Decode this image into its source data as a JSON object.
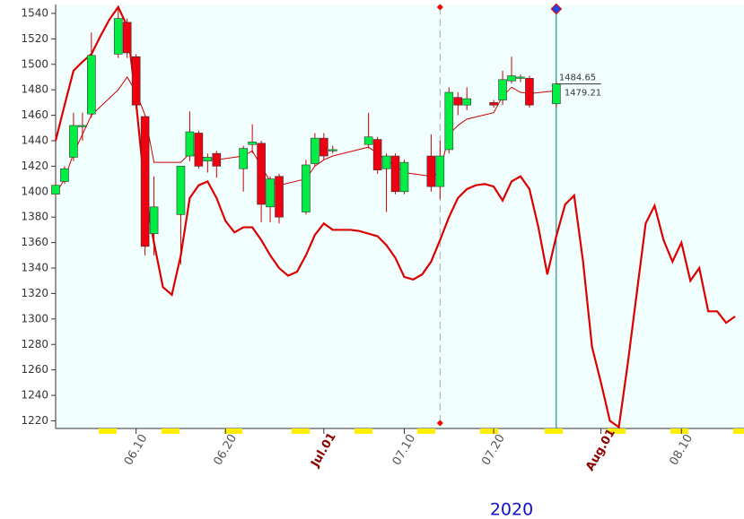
{
  "chart_data": {
    "type": "candlestick",
    "year_label": "2020",
    "xlim": [
      "06.01",
      "08.17"
    ],
    "ylim": [
      1214,
      1547
    ],
    "yticks": [
      1220,
      1240,
      1260,
      1280,
      1300,
      1320,
      1340,
      1360,
      1380,
      1400,
      1420,
      1440,
      1460,
      1480,
      1500,
      1520,
      1540
    ],
    "xticks": [
      "06.10",
      "06.20",
      {
        "value": "07.01",
        "label": "Jul.01"
      },
      "07.10",
      "07.20",
      {
        "value": "08.01",
        "label": "Aug.01"
      },
      "08.10"
    ],
    "divider_x": "07.14",
    "cursor_x": "07.27",
    "candles": {
      "up_color": "#00ee44",
      "down_color": "#ee0011",
      "x": [
        "06.01",
        "06.02",
        "06.03",
        "06.04",
        "06.05",
        "06.08",
        "06.09",
        "06.10",
        "06.11",
        "06.12",
        "06.15",
        "06.16",
        "06.17",
        "06.18",
        "06.19",
        "06.22",
        "06.23",
        "06.24",
        "06.25",
        "06.26",
        "06.29",
        "06.30",
        "07.01",
        "07.02",
        "07.06",
        "07.07",
        "07.08",
        "07.09",
        "07.10",
        "07.13",
        "07.14",
        "07.15",
        "07.16",
        "07.17",
        "07.20",
        "07.21",
        "07.22",
        "07.23",
        "07.24",
        "07.27"
      ],
      "open": [
        1398,
        1408,
        1427,
        1451,
        1461,
        1508,
        1533,
        1506,
        1459,
        1367,
        1382,
        1428,
        1446,
        1424,
        1430,
        1418,
        1437,
        1438,
        1388,
        1412,
        1384,
        1422,
        1442,
        1433,
        1437,
        1441,
        1418,
        1428,
        1400,
        1428,
        1404,
        1433,
        1474,
        1468,
        1470,
        1472,
        1487,
        1489,
        1489,
        1469
      ],
      "high": [
        1408,
        1420,
        1462,
        1462,
        1525,
        1545,
        1536,
        1508,
        1460,
        1412,
        1420,
        1463,
        1448,
        1430,
        1432,
        1436,
        1453,
        1440,
        1412,
        1414,
        1425,
        1446,
        1446,
        1436,
        1462,
        1443,
        1430,
        1430,
        1425,
        1445,
        1440,
        1482,
        1478,
        1482,
        1472,
        1495,
        1506,
        1492,
        1491,
        1486
      ],
      "low": [
        1396,
        1406,
        1424,
        1440,
        1458,
        1505,
        1505,
        1465,
        1350,
        1350,
        1343,
        1424,
        1418,
        1415,
        1411,
        1400,
        1430,
        1376,
        1376,
        1375,
        1382,
        1420,
        1425,
        1430,
        1434,
        1414,
        1384,
        1398,
        1398,
        1400,
        1394,
        1430,
        1460,
        1464,
        1466,
        1468,
        1485,
        1486,
        1466,
        1466
      ],
      "close": [
        1405,
        1418,
        1452,
        1452,
        1507,
        1536,
        1509,
        1468,
        1357,
        1388,
        1420,
        1447,
        1420,
        1427,
        1420,
        1434,
        1439,
        1390,
        1410,
        1380,
        1421,
        1442,
        1428,
        1433,
        1443,
        1417,
        1428,
        1400,
        1423,
        1404,
        1428,
        1478,
        1468,
        1473,
        1468,
        1488,
        1491,
        1490,
        1468,
        1484.65
      ],
      "last_label": "1484.65"
    },
    "series": [
      {
        "color": "#cc0000",
        "x": [
          "06.01",
          "06.02",
          "06.03",
          "06.04",
          "06.05",
          "06.08",
          "06.09",
          "06.10",
          "06.11",
          "06.12",
          "06.15",
          "06.16",
          "06.17",
          "06.18",
          "06.19",
          "06.22",
          "06.23",
          "06.24",
          "06.25",
          "06.26",
          "06.29",
          "06.30",
          "07.01",
          "07.02",
          "07.06",
          "07.07",
          "07.08",
          "07.09",
          "07.10",
          "07.13",
          "07.14",
          "07.15",
          "07.16",
          "07.17",
          "07.20",
          "07.21",
          "07.22",
          "07.23",
          "07.24",
          "07.27"
        ],
        "values": [
          1398,
          1410,
          1430,
          1445,
          1460,
          1480,
          1490,
          1478,
          1460,
          1423,
          1423,
          1430,
          1428,
          1426,
          1425,
          1428,
          1432,
          1420,
          1408,
          1405,
          1410,
          1420,
          1425,
          1428,
          1435,
          1430,
          1425,
          1420,
          1415,
          1412,
          1415,
          1445,
          1452,
          1457,
          1462,
          1475,
          1482,
          1478,
          1477,
          1479.21
        ],
        "last_label": "1479.21"
      },
      {
        "color": "#dd0000",
        "x": [
          "06.01",
          "06.02",
          "06.03",
          "06.04",
          "06.05",
          "06.06",
          "06.07",
          "06.08",
          "06.09",
          "06.10",
          "06.11",
          "06.12",
          "06.13",
          "06.14",
          "06.15",
          "06.16",
          "06.17",
          "06.18",
          "06.19",
          "06.20",
          "06.21",
          "06.22",
          "06.23",
          "06.24",
          "06.25",
          "06.26",
          "06.27",
          "06.28",
          "06.29",
          "06.30",
          "07.01",
          "07.02",
          "07.03",
          "07.04",
          "07.05",
          "07.06",
          "07.07",
          "07.08",
          "07.09",
          "07.10",
          "07.11",
          "07.12",
          "07.13",
          "07.14",
          "07.15",
          "07.16",
          "07.17",
          "07.18",
          "07.19",
          "07.20",
          "07.21",
          "07.22",
          "07.23",
          "07.24",
          "07.25",
          "07.26",
          "07.27",
          "07.28",
          "07.29",
          "07.30",
          "07.31",
          "08.01",
          "08.02",
          "08.03",
          "08.04",
          "08.05",
          "08.06",
          "08.07",
          "08.08",
          "08.09",
          "08.10",
          "08.11",
          "08.12",
          "08.13",
          "08.14",
          "08.15",
          "08.16"
        ],
        "values": [
          1440,
          1468,
          1495,
          1502,
          1508,
          1522,
          1535,
          1545,
          1530,
          1470,
          1400,
          1360,
          1325,
          1319,
          1350,
          1395,
          1405,
          1408,
          1395,
          1377,
          1368,
          1372,
          1372,
          1362,
          1350,
          1340,
          1334,
          1337,
          1350,
          1366,
          1375,
          1370,
          1370,
          1370,
          1369,
          1367,
          1365,
          1358,
          1348,
          1333,
          1331,
          1335,
          1345,
          1362,
          1380,
          1395,
          1402,
          1405,
          1406,
          1404,
          1393,
          1408,
          1412,
          1402,
          1372,
          1335,
          1365,
          1390,
          1397,
          1345,
          1278,
          1250,
          1220,
          1215,
          1265,
          1320,
          1375,
          1389,
          1362,
          1345,
          1360,
          1330,
          1340,
          1306,
          1306,
          1297,
          1302
        ]
      }
    ]
  }
}
